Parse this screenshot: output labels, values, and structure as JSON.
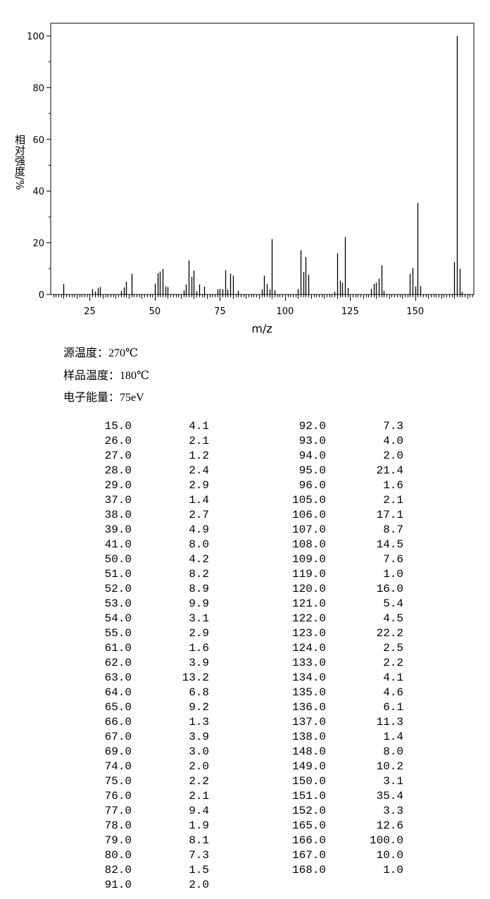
{
  "conditions": {
    "source_temp": "源温度：270℃",
    "sample_temp": "样品温度：180℃",
    "electron_energy": "电子能量：75eV"
  },
  "chart_data": {
    "type": "bar",
    "xlabel": "m/z",
    "ylabel": "相对强度/%",
    "xlim": [
      10,
      172.5
    ],
    "ylim": [
      0,
      105
    ],
    "x_ticks": [
      25,
      50,
      75,
      100,
      125,
      150
    ],
    "y_ticks": [
      0,
      20,
      40,
      60,
      80,
      100
    ],
    "grid": false,
    "color": "#000000",
    "x": [
      15,
      26,
      27,
      28,
      29,
      37,
      38,
      39,
      41,
      50,
      51,
      52,
      53,
      54,
      55,
      61,
      62,
      63,
      64,
      65,
      66,
      67,
      69,
      74,
      75,
      76,
      77,
      78,
      79,
      80,
      82,
      91,
      92,
      93,
      94,
      95,
      96,
      105,
      106,
      107,
      108,
      109,
      119,
      120,
      121,
      122,
      123,
      124,
      133,
      134,
      135,
      136,
      137,
      138,
      148,
      149,
      150,
      151,
      152,
      165,
      166,
      167,
      168
    ],
    "values": [
      4.1,
      2.1,
      1.2,
      2.4,
      2.9,
      1.4,
      2.7,
      4.9,
      8.0,
      4.2,
      8.2,
      8.9,
      9.9,
      3.1,
      2.9,
      1.6,
      3.9,
      13.2,
      6.8,
      9.2,
      1.3,
      3.9,
      3.0,
      2.0,
      2.2,
      2.1,
      9.4,
      1.9,
      8.1,
      7.3,
      1.5,
      2.0,
      7.3,
      4.0,
      2.0,
      21.4,
      1.6,
      2.1,
      17.1,
      8.7,
      14.5,
      7.6,
      1.0,
      16.0,
      5.4,
      4.5,
      22.2,
      2.5,
      2.2,
      4.1,
      4.6,
      6.1,
      11.3,
      1.4,
      8.0,
      10.2,
      3.1,
      35.4,
      3.3,
      12.6,
      100.0,
      10.0,
      1.0
    ]
  }
}
